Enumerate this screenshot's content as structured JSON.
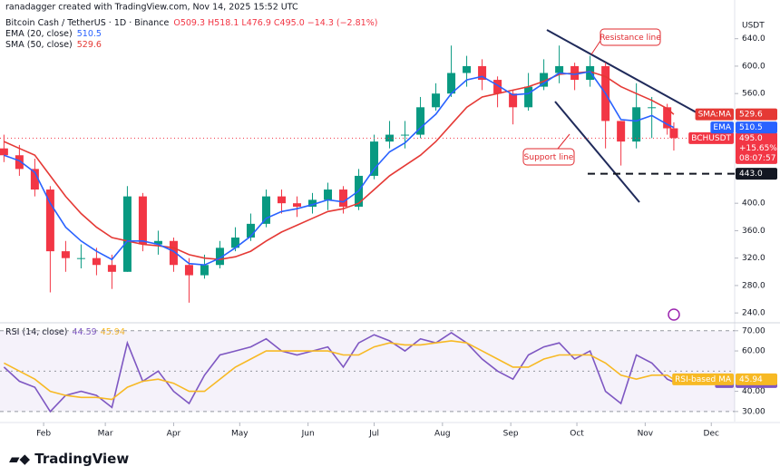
{
  "chart_data": [
    {
      "type": "candlestick",
      "credit": "ranadagger created with TradingView.com, Nov 14, 2025 15:52 UTC",
      "title": "Bitcoin Cash / TetherUS · 1D · Binance",
      "ohlc_label": "O509.3 H518.1 L476.9 C495.0 −14.3 (−2.81%)",
      "y_unit": "USDT",
      "up_color": "#089981",
      "down_color": "#f23645",
      "x": [
        14,
        21,
        28,
        35,
        42,
        49,
        56,
        63,
        70,
        77,
        84,
        91,
        98,
        105,
        112,
        119,
        126,
        133,
        140,
        147,
        154,
        161,
        168,
        175,
        182,
        189,
        196,
        203,
        210,
        217,
        224,
        231,
        238,
        245,
        252,
        259,
        266,
        273,
        280,
        287,
        294,
        301,
        308,
        315,
        318
      ],
      "open": [
        480,
        470,
        450,
        420,
        330,
        320,
        320,
        310,
        300,
        410,
        340,
        345,
        310,
        295,
        310,
        335,
        350,
        370,
        410,
        400,
        395,
        405,
        420,
        395,
        440,
        490,
        500,
        500,
        540,
        560,
        590,
        600,
        580,
        560,
        540,
        570,
        590,
        600,
        580,
        600,
        520,
        490,
        540,
        540,
        509.3
      ],
      "high": [
        500,
        485,
        465,
        425,
        345,
        340,
        335,
        325,
        425,
        415,
        360,
        350,
        320,
        325,
        345,
        365,
        385,
        420,
        420,
        410,
        415,
        430,
        425,
        450,
        500,
        520,
        520,
        555,
        575,
        630,
        615,
        610,
        585,
        565,
        590,
        610,
        630,
        605,
        615,
        605,
        520,
        575,
        555,
        545,
        518.1
      ],
      "low": [
        460,
        440,
        410,
        270,
        300,
        305,
        295,
        275,
        300,
        330,
        325,
        300,
        255,
        290,
        305,
        330,
        345,
        365,
        385,
        380,
        385,
        390,
        385,
        390,
        435,
        480,
        480,
        495,
        535,
        555,
        570,
        565,
        540,
        515,
        535,
        565,
        575,
        565,
        570,
        480,
        455,
        480,
        495,
        500,
        476.9
      ],
      "close": [
        470,
        450,
        420,
        330,
        320,
        320,
        310,
        300,
        410,
        340,
        345,
        310,
        295,
        310,
        335,
        350,
        370,
        410,
        400,
        395,
        405,
        420,
        395,
        440,
        490,
        500,
        500,
        540,
        560,
        590,
        600,
        580,
        560,
        540,
        570,
        590,
        600,
        580,
        600,
        520,
        490,
        540,
        540,
        509.3,
        495
      ],
      "series": [
        {
          "name": "SMA (50, close)",
          "tag": "SMA:MA",
          "color": "#e53935",
          "values": [
            490,
            480,
            470,
            440,
            410,
            385,
            365,
            350,
            345,
            340,
            338,
            335,
            325,
            320,
            318,
            322,
            330,
            345,
            358,
            368,
            378,
            388,
            392,
            400,
            420,
            440,
            455,
            470,
            490,
            515,
            540,
            555,
            560,
            565,
            570,
            578,
            588,
            590,
            592,
            585,
            570,
            560,
            550,
            538,
            529.6
          ]
        },
        {
          "name": "EMA (20, close)",
          "tag": "EMA",
          "color": "#2962ff",
          "values": [
            470,
            462,
            445,
            400,
            365,
            345,
            330,
            318,
            345,
            345,
            340,
            330,
            312,
            310,
            320,
            335,
            352,
            378,
            388,
            392,
            398,
            405,
            402,
            418,
            450,
            475,
            488,
            510,
            530,
            560,
            580,
            585,
            572,
            558,
            560,
            575,
            590,
            588,
            592,
            560,
            522,
            520,
            528,
            515,
            510.5
          ]
        }
      ],
      "price_tags": [
        {
          "name": "BCHUSDT",
          "value": 495,
          "label": "495.0",
          "lines": [
            "+15.65%",
            "08:07:57"
          ],
          "color": "#f23645",
          "line_style": "dotted"
        },
        {
          "value": 443,
          "label": "443.0",
          "color": "#131722",
          "line_style": "dashed"
        }
      ],
      "annotations": [
        "Resistance line",
        "Support line"
      ],
      "xlim": [
        12.2,
        345.6
      ],
      "ylim": [
        227,
        670
      ],
      "yticks": [
        {
          "value": 640,
          "label": "640.0"
        },
        {
          "value": 600,
          "label": "600.0"
        },
        {
          "value": 560,
          "label": "560.0"
        },
        {
          "value": 400,
          "label": "400.0"
        },
        {
          "value": 360,
          "label": "360.0"
        },
        {
          "value": 320,
          "label": "320.0"
        },
        {
          "value": 280,
          "label": "280.0"
        },
        {
          "value": 240,
          "label": "240.0"
        }
      ]
    },
    {
      "type": "line",
      "title": "RSI (14, close)",
      "x": [
        14,
        21,
        28,
        35,
        42,
        49,
        56,
        63,
        70,
        77,
        84,
        91,
        98,
        105,
        112,
        119,
        126,
        133,
        140,
        147,
        154,
        161,
        168,
        175,
        182,
        189,
        196,
        203,
        210,
        217,
        224,
        231,
        238,
        245,
        252,
        259,
        266,
        273,
        280,
        287,
        294,
        301,
        308,
        315,
        318
      ],
      "series": [
        {
          "name": "RSI",
          "tag": "RSI",
          "color": "#7e57c2",
          "values": [
            52,
            45,
            42,
            30,
            38,
            40,
            38,
            32,
            64,
            45,
            50,
            40,
            34,
            48,
            58,
            60,
            62,
            66,
            60,
            58,
            60,
            62,
            52,
            64,
            68,
            65,
            60,
            66,
            64,
            69,
            64,
            56,
            50,
            46,
            58,
            62,
            64,
            56,
            60,
            40,
            34,
            58,
            54,
            46,
            44.59
          ]
        },
        {
          "name": "RSI-based MA",
          "tag": "RSI-based MA",
          "color": "#f7b924",
          "values": [
            54,
            50,
            46,
            40,
            38,
            37,
            37,
            36,
            42,
            45,
            46,
            44,
            40,
            40,
            46,
            52,
            56,
            60,
            60,
            60,
            60,
            60,
            58,
            58,
            62,
            64,
            63,
            63,
            64,
            65,
            64,
            60,
            56,
            52,
            52,
            56,
            58,
            58,
            58,
            54,
            48,
            46,
            48,
            48,
            45.94
          ]
        }
      ],
      "midline": 50,
      "band_color": "#7e57c2",
      "xlim": [
        12.2,
        345.6
      ],
      "ylim": [
        25,
        73.5
      ],
      "yticks": [
        {
          "value": 70,
          "label": "70.00"
        },
        {
          "value": 60,
          "label": "60.00"
        },
        {
          "value": 40,
          "label": "40.00"
        },
        {
          "value": 30,
          "label": "30.00"
        }
      ],
      "xticks": [
        {
          "value": 32,
          "label": "Feb"
        },
        {
          "value": 60,
          "label": "Mar"
        },
        {
          "value": 91,
          "label": "Apr"
        },
        {
          "value": 121,
          "label": "May"
        },
        {
          "value": 152,
          "label": "Jun"
        },
        {
          "value": 182,
          "label": "Jul"
        },
        {
          "value": 213,
          "label": "Aug"
        },
        {
          "value": 244,
          "label": "Sep"
        },
        {
          "value": 274,
          "label": "Oct"
        },
        {
          "value": 305,
          "label": "Nov"
        },
        {
          "value": 335,
          "label": "Dec"
        }
      ]
    }
  ],
  "footer": "TradingView"
}
